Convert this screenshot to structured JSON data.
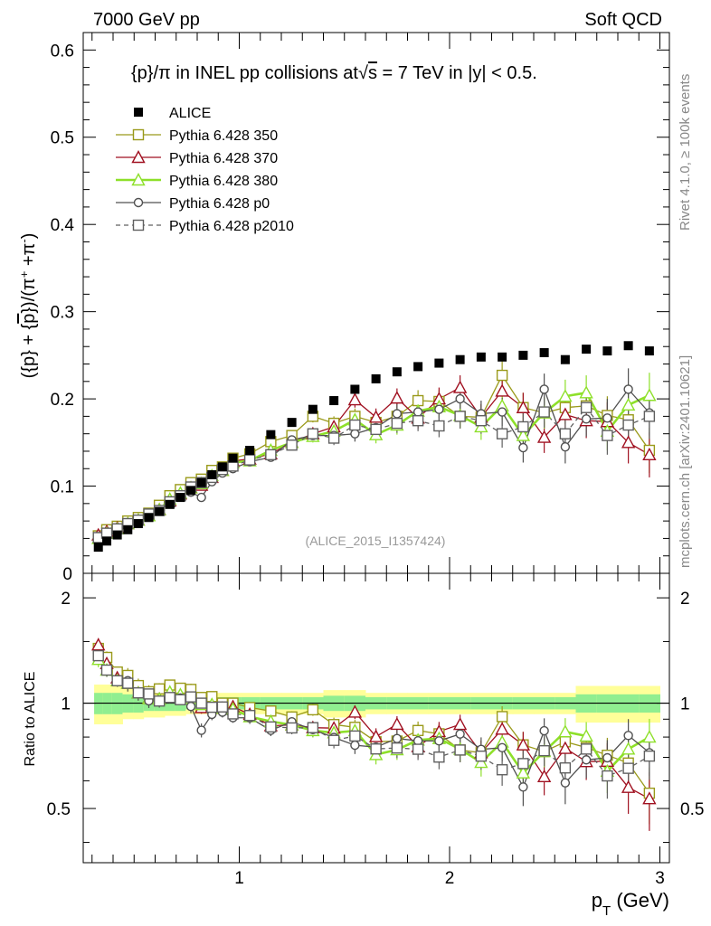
{
  "header": {
    "left": "7000 GeV pp",
    "right": "Soft QCD"
  },
  "side": {
    "rivet": "Rivet 4.1.0, ≥ 100k events",
    "mcplots": "mcplots.cern.ch [arXiv:2401.10621]"
  },
  "chart_data": {
    "type": "scatter",
    "title": "{p}/π in INEL pp collisions at√s = 7 TeV in |y| < 0.5.",
    "title_parts": {
      "a": "{p}/π in INEL pp collisions at",
      "sqrt": "√",
      "s": "s",
      "b": " =  7 TeV in |y| < 0.5."
    },
    "analysis_tag": "(ALICE_2015_I1357424)",
    "xlabel": "p",
    "xlabel_sub": "T",
    "xlabel_unit": " (GeV)",
    "ylabel": "(⟨p⟩ + ⟨p̄⟩)/(π⁺ + π⁻)",
    "ylabel_parts": {
      "a": "({p} + {",
      "pbar": "p",
      "b": "})/(π",
      "sup1": "+",
      "c": " +π",
      "sup2": "-",
      "d": ")"
    },
    "ratio_ylabel": "Ratio to ALICE",
    "xlim": [
      0.3,
      3.05
    ],
    "ylim": [
      0,
      0.62
    ],
    "ratio_ylim": [
      0.35,
      2.35
    ],
    "x_ticks": [
      1,
      2,
      3
    ],
    "x_tick_labels": [
      "1",
      "2",
      "3"
    ],
    "y_ticks": [
      0.1,
      0.2,
      0.3,
      0.4,
      0.5,
      0.6
    ],
    "y_tick_labels": [
      "0.1",
      "0.2",
      "0.3",
      "0.4",
      "0.5",
      "0.6"
    ],
    "y_zero_label": "0",
    "ratio_ticks": [
      0.5,
      1,
      2
    ],
    "ratio_tick_labels": [
      "0.5",
      "1",
      "2"
    ],
    "x": [
      0.33,
      0.37,
      0.42,
      0.47,
      0.52,
      0.57,
      0.62,
      0.67,
      0.72,
      0.77,
      0.82,
      0.87,
      0.92,
      0.97,
      1.05,
      1.15,
      1.25,
      1.35,
      1.45,
      1.55,
      1.65,
      1.75,
      1.85,
      1.95,
      2.05,
      2.15,
      2.25,
      2.35,
      2.45,
      2.55,
      2.65,
      2.75,
      2.85,
      2.95
    ],
    "series": [
      {
        "name": "ALICE",
        "style": "data",
        "color": "#000000",
        "values": [
          0.03,
          0.037,
          0.044,
          0.05,
          0.057,
          0.064,
          0.071,
          0.079,
          0.087,
          0.095,
          0.104,
          0.113,
          0.122,
          0.132,
          0.141,
          0.159,
          0.173,
          0.188,
          0.198,
          0.211,
          0.223,
          0.231,
          0.237,
          0.241,
          0.245,
          0.248,
          0.248,
          0.25,
          0.253,
          0.245,
          0.257,
          0.255,
          0.261,
          0.255
        ],
        "ratio_band_inner": [
          0.93,
          0.93,
          0.93,
          0.94,
          0.94,
          0.95,
          0.95,
          0.95,
          0.95,
          0.96,
          0.96,
          0.96,
          0.96,
          0.96,
          0.96,
          0.96,
          0.96,
          0.96,
          0.95,
          0.95,
          0.96,
          0.96,
          0.96,
          0.96,
          0.96,
          0.96,
          0.96,
          0.96,
          0.96,
          0.96,
          0.94,
          0.94,
          0.94,
          0.94
        ],
        "ratio_band_outer": [
          0.87,
          0.87,
          0.87,
          0.9,
          0.9,
          0.91,
          0.91,
          0.92,
          0.92,
          0.93,
          0.93,
          0.93,
          0.93,
          0.93,
          0.93,
          0.93,
          0.93,
          0.93,
          0.91,
          0.91,
          0.93,
          0.93,
          0.93,
          0.93,
          0.93,
          0.93,
          0.93,
          0.93,
          0.93,
          0.93,
          0.88,
          0.88,
          0.88,
          0.88
        ]
      },
      {
        "name": "Pythia 6.428 350",
        "style": "square-open",
        "color": "#9a9a1a",
        "dashed": false,
        "values": [
          0.043,
          0.05,
          0.054,
          0.06,
          0.064,
          0.069,
          0.078,
          0.089,
          0.096,
          0.104,
          0.108,
          0.118,
          0.122,
          0.132,
          0.137,
          0.151,
          0.158,
          0.18,
          0.172,
          0.18,
          0.173,
          0.18,
          0.198,
          0.197,
          0.18,
          0.179,
          0.227,
          0.19,
          0.184,
          0.19,
          0.192,
          0.181,
          0.176,
          0.141
        ],
        "errors": [
          0.002,
          0.002,
          0.002,
          0.003,
          0.003,
          0.003,
          0.003,
          0.003,
          0.003,
          0.004,
          0.004,
          0.004,
          0.004,
          0.004,
          0.005,
          0.005,
          0.006,
          0.007,
          0.008,
          0.009,
          0.01,
          0.011,
          0.012,
          0.013,
          0.014,
          0.015,
          0.016,
          0.017,
          0.018,
          0.019,
          0.02,
          0.022,
          0.024,
          0.026
        ]
      },
      {
        "name": "Pythia 6.428 370",
        "style": "triangle-open",
        "color": "#a01020",
        "dashed": false,
        "values": [
          0.044,
          0.048,
          0.052,
          0.057,
          0.061,
          0.066,
          0.073,
          0.083,
          0.091,
          0.098,
          0.101,
          0.11,
          0.118,
          0.129,
          0.131,
          0.137,
          0.15,
          0.16,
          0.168,
          0.199,
          0.179,
          0.201,
          0.178,
          0.2,
          0.213,
          0.179,
          0.209,
          0.19,
          0.156,
          0.182,
          0.175,
          0.174,
          0.15,
          0.136
        ],
        "errors": [
          0.002,
          0.002,
          0.002,
          0.003,
          0.003,
          0.003,
          0.003,
          0.003,
          0.003,
          0.004,
          0.004,
          0.004,
          0.004,
          0.004,
          0.005,
          0.005,
          0.006,
          0.007,
          0.008,
          0.009,
          0.01,
          0.011,
          0.012,
          0.013,
          0.014,
          0.015,
          0.016,
          0.017,
          0.018,
          0.019,
          0.02,
          0.022,
          0.024,
          0.026
        ]
      },
      {
        "name": "Pythia 6.428 380",
        "style": "triangle-open",
        "color": "#8ee02a",
        "dashed": false,
        "values": [
          0.04,
          0.046,
          0.051,
          0.057,
          0.061,
          0.066,
          0.073,
          0.085,
          0.092,
          0.098,
          0.103,
          0.112,
          0.118,
          0.127,
          0.129,
          0.141,
          0.15,
          0.157,
          0.163,
          0.176,
          0.159,
          0.17,
          0.186,
          0.191,
          0.181,
          0.168,
          0.192,
          0.158,
          0.184,
          0.203,
          0.207,
          0.163,
          0.193,
          0.204
        ],
        "errors": [
          0.002,
          0.002,
          0.002,
          0.003,
          0.003,
          0.003,
          0.003,
          0.003,
          0.003,
          0.004,
          0.004,
          0.004,
          0.004,
          0.004,
          0.005,
          0.005,
          0.006,
          0.007,
          0.008,
          0.009,
          0.01,
          0.011,
          0.012,
          0.013,
          0.014,
          0.015,
          0.016,
          0.017,
          0.018,
          0.019,
          0.02,
          0.022,
          0.024,
          0.026
        ]
      },
      {
        "name": "Pythia 6.428 p0",
        "style": "circle-open",
        "color": "#505050",
        "dashed": false,
        "values": [
          0.041,
          0.046,
          0.051,
          0.058,
          0.061,
          0.065,
          0.072,
          0.082,
          0.09,
          0.093,
          0.087,
          0.105,
          0.115,
          0.12,
          0.128,
          0.133,
          0.153,
          0.158,
          0.158,
          0.16,
          0.167,
          0.183,
          0.185,
          0.188,
          0.2,
          0.183,
          0.185,
          0.144,
          0.211,
          0.145,
          0.177,
          0.178,
          0.211,
          0.184
        ],
        "errors": [
          0.002,
          0.002,
          0.002,
          0.003,
          0.003,
          0.003,
          0.003,
          0.003,
          0.003,
          0.004,
          0.004,
          0.004,
          0.004,
          0.004,
          0.005,
          0.005,
          0.006,
          0.007,
          0.008,
          0.009,
          0.01,
          0.011,
          0.012,
          0.013,
          0.014,
          0.015,
          0.016,
          0.017,
          0.018,
          0.019,
          0.02,
          0.022,
          0.024,
          0.026
        ]
      },
      {
        "name": "Pythia 6.428 p2010",
        "style": "square-open",
        "color": "#606060",
        "dashed": true,
        "values": [
          0.041,
          0.046,
          0.051,
          0.057,
          0.061,
          0.068,
          0.072,
          0.082,
          0.089,
          0.099,
          0.104,
          0.11,
          0.119,
          0.123,
          0.13,
          0.136,
          0.147,
          0.16,
          0.155,
          0.17,
          0.165,
          0.172,
          0.175,
          0.169,
          0.18,
          0.175,
          0.16,
          0.168,
          0.185,
          0.16,
          0.19,
          0.158,
          0.17,
          0.18
        ],
        "errors": [
          0.002,
          0.002,
          0.002,
          0.003,
          0.003,
          0.003,
          0.003,
          0.003,
          0.003,
          0.004,
          0.004,
          0.004,
          0.004,
          0.004,
          0.005,
          0.005,
          0.006,
          0.007,
          0.008,
          0.009,
          0.01,
          0.011,
          0.012,
          0.013,
          0.014,
          0.015,
          0.016,
          0.017,
          0.018,
          0.019,
          0.02,
          0.022,
          0.024,
          0.026
        ]
      }
    ]
  }
}
